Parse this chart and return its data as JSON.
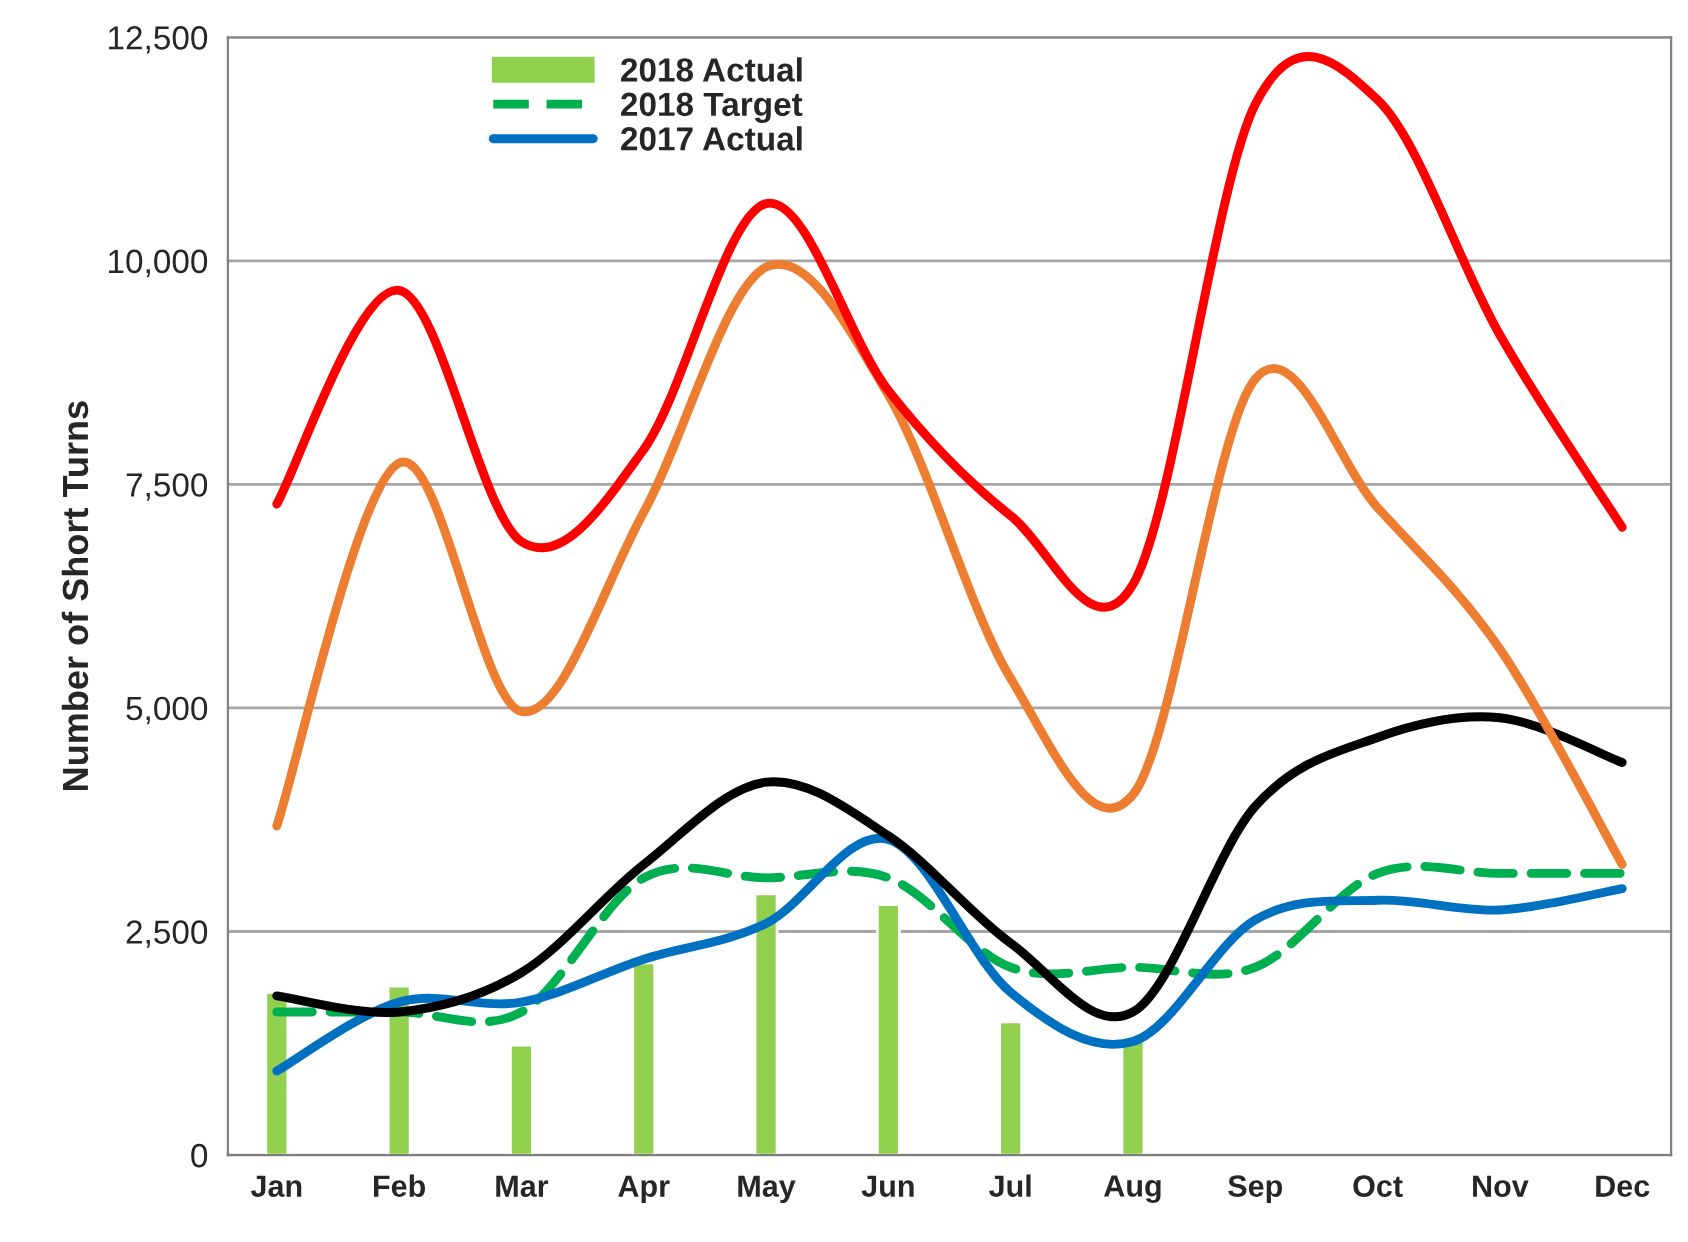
{
  "chart_data": {
    "type": "line",
    "ylabel": "Number of Short Turns",
    "categories": [
      "Jan",
      "Feb",
      "Mar",
      "Apr",
      "May",
      "Jun",
      "Jul",
      "Aug",
      "Sep",
      "Oct",
      "Nov",
      "Dec"
    ],
    "series": [
      {
        "name": "2018 Actual",
        "type": "bar",
        "color": "#92d050",
        "values": [
          1820,
          1890,
          1230,
          2150,
          2920,
          2800,
          1490,
          1270,
          null,
          null,
          null,
          null
        ]
      },
      {
        "name": "2018 Target",
        "color": "#00b050",
        "line_style": "dashed",
        "values": [
          1600,
          1600,
          1600,
          3100,
          3100,
          3100,
          2100,
          2100,
          2100,
          3150,
          3150,
          3150
        ]
      },
      {
        "name": "2017 Actual",
        "color": "#0070c0",
        "values": [
          940,
          1710,
          1710,
          2190,
          2590,
          3530,
          1820,
          1270,
          2630,
          2850,
          2740,
          2980
        ]
      },
      {
        "color": "#000000",
        "values": [
          1780,
          1600,
          2040,
          3250,
          4170,
          3570,
          2370,
          1600,
          3900,
          4670,
          4890,
          4390
        ]
      },
      {
        "color": "#ed7d31",
        "values": [
          3680,
          7740,
          4960,
          7190,
          9930,
          8500,
          5330,
          4030,
          8680,
          7240,
          5660,
          3250
        ]
      },
      {
        "color": "#ff0000",
        "values": [
          7280,
          9670,
          6860,
          7890,
          10640,
          8550,
          7150,
          6380,
          11750,
          11800,
          9170,
          7020
        ]
      }
    ],
    "ylim": [
      0,
      12500
    ],
    "yticks": [
      0,
      {
        "value": 2500,
        "label": "2,500"
      },
      {
        "value": 5000,
        "label": "5,000"
      },
      {
        "value": 7500,
        "label": "7,500"
      },
      {
        "value": 10000,
        "label": "10,000"
      },
      {
        "value": 12500,
        "label": "12,500"
      }
    ],
    "grid": "y",
    "legend": "top left",
    "marker": "none"
  }
}
